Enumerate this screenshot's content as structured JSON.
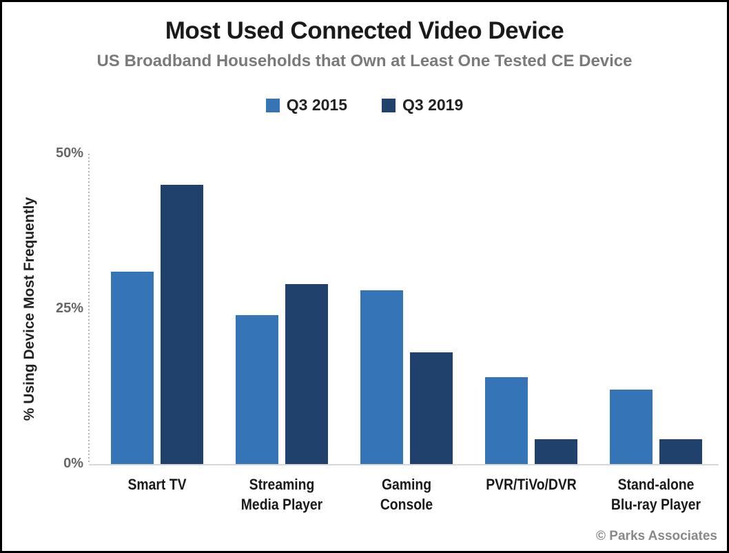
{
  "chart_data": {
    "type": "bar",
    "title": "Most Used Connected Video Device",
    "subtitle": "US Broadband Households that Own at Least One Tested CE Device",
    "ylabel": "% Using Device Most Frequently",
    "xlabel": "",
    "ylim": [
      0,
      50
    ],
    "yticks": [
      "0%",
      "25%",
      "50%"
    ],
    "ytick_values": [
      0,
      25,
      50
    ],
    "grid": false,
    "legend_position": "top",
    "categories": [
      [
        "Smart TV"
      ],
      [
        "Streaming",
        "Media Player"
      ],
      [
        "Gaming",
        "Console"
      ],
      [
        "PVR/TiVo/DVR"
      ],
      [
        "Stand-alone",
        "Blu-ray Player"
      ]
    ],
    "series": [
      {
        "name": "Q3 2015",
        "color": "#3574b6",
        "values": [
          31,
          24,
          28,
          14,
          12
        ]
      },
      {
        "name": "Q3 2019",
        "color": "#1f416b",
        "values": [
          45,
          29,
          18,
          4,
          4
        ]
      }
    ],
    "credit": "© Parks Associates"
  }
}
